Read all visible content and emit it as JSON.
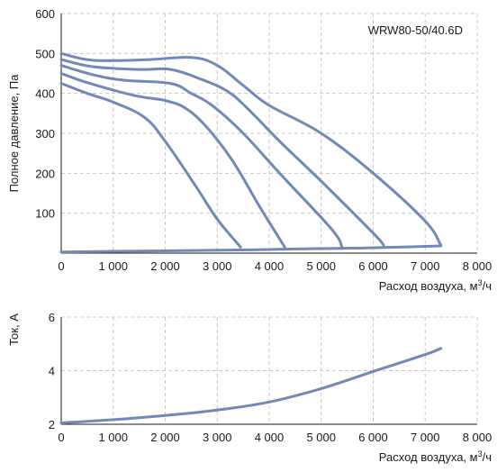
{
  "chart_data": [
    {
      "type": "line",
      "annotation": "WRW80-50/40.6D",
      "xlabel": "Расход воздуха, м",
      "xlabel_sup": "3",
      "xlabel_suffix": "/ч",
      "ylabel": "Полное давление, Па",
      "xlim": [
        0,
        8000
      ],
      "ylim": [
        0,
        600
      ],
      "x_ticks": [
        "0",
        "1 000",
        "2 000",
        "3 000",
        "4 000",
        "5 000",
        "6 000",
        "7 000",
        "8 000"
      ],
      "y_ticks": [
        "100",
        "200",
        "300",
        "400",
        "500",
        "600"
      ],
      "y_tick_values": [
        100,
        200,
        300,
        400,
        500,
        600
      ],
      "series": [
        {
          "x": [
            0,
            600,
            1600,
            2500,
            3000,
            3500,
            4000,
            5000,
            6000,
            7000,
            7300
          ],
          "y": [
            500,
            483,
            484,
            490,
            470,
            420,
            370,
            300,
            200,
            80,
            20
          ]
        },
        {
          "x": [
            0,
            600,
            1500,
            2100,
            2700,
            3200,
            3600,
            4200,
            5000,
            6000,
            6200
          ],
          "y": [
            485,
            467,
            460,
            460,
            435,
            405,
            360,
            280,
            180,
            50,
            20
          ]
        },
        {
          "x": [
            0,
            600,
            1200,
            2100,
            2500,
            2900,
            3500,
            4200,
            5200,
            5400
          ],
          "y": [
            470,
            447,
            433,
            425,
            400,
            370,
            300,
            200,
            60,
            15
          ]
        },
        {
          "x": [
            0,
            500,
            1400,
            2000,
            2400,
            2800,
            3300,
            3800,
            4300
          ],
          "y": [
            450,
            427,
            395,
            382,
            362,
            315,
            230,
            120,
            15
          ]
        },
        {
          "x": [
            0,
            500,
            1000,
            1600,
            2000,
            2600,
            3000,
            3450
          ],
          "y": [
            425,
            400,
            378,
            340,
            280,
            165,
            85,
            15
          ]
        },
        {
          "x": [
            0,
            3450,
            4300,
            5400,
            6200,
            7300
          ],
          "y": [
            3,
            8,
            10,
            12,
            14,
            18
          ]
        }
      ]
    },
    {
      "type": "line",
      "xlabel": "Расход воздуха, м",
      "xlabel_sup": "3",
      "xlabel_suffix": "/ч",
      "ylabel": "Ток, А",
      "xlim": [
        0,
        8000
      ],
      "ylim": [
        2,
        6
      ],
      "x_ticks": [
        "0",
        "1 000",
        "2 000",
        "3 000",
        "4 000",
        "5 000",
        "6 000",
        "7 000",
        "8 000"
      ],
      "y_ticks": [
        "2",
        "4",
        "6"
      ],
      "y_tick_values": [
        2,
        4,
        6
      ],
      "series": [
        {
          "x": [
            0,
            1000,
            2000,
            3000,
            4000,
            5000,
            6000,
            7000,
            7300
          ],
          "y": [
            2.05,
            2.17,
            2.33,
            2.53,
            2.83,
            3.33,
            3.97,
            4.6,
            4.83
          ]
        }
      ]
    }
  ]
}
